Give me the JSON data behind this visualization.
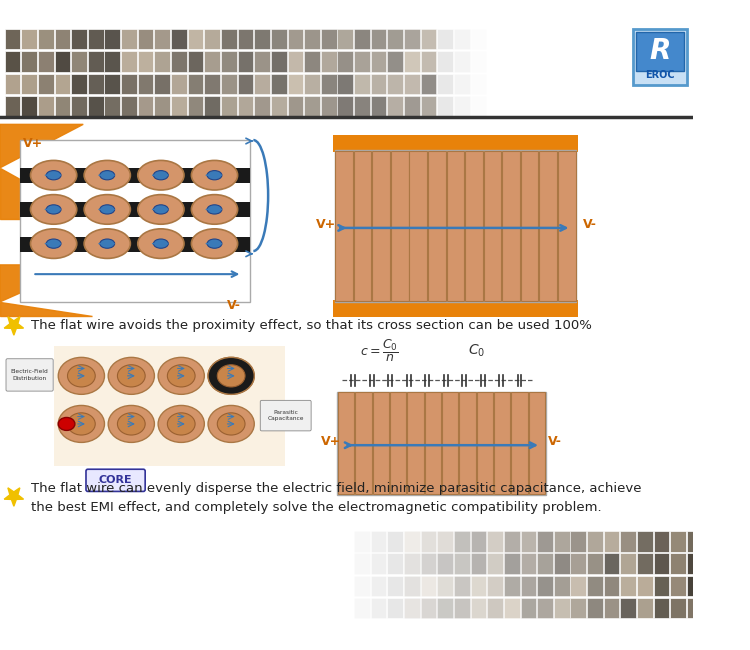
{
  "bg_color": "#ffffff",
  "orange_color": "#e8820a",
  "tan_color": "#d4956a",
  "blue_color": "#3a7ab8",
  "text1": "The flat wire avoids the proximity effect, so that its cross section can be used 100%",
  "text2_line1": "The flat wire can evenly disperse the electric field, minimize parasitic capacitance, achieve",
  "text2_line2": "the best EMI effect, and completely solve the electromagnetic compatibility problem.",
  "vplus_color": "#cc6600",
  "core_box_color": "#e0e0ff",
  "core_text_color": "#333399"
}
